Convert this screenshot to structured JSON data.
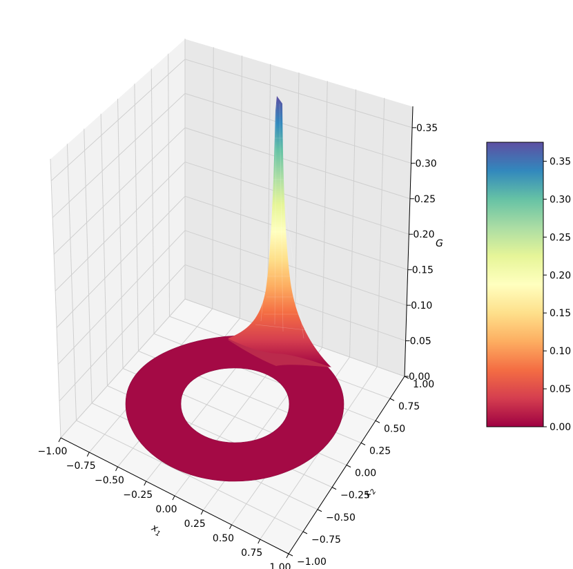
{
  "chart_data": {
    "type": "surface3d",
    "surface": "annulus (inner radius ~0.5, outer radius ~1.0) with a sharp peak near (x1, x2) ≈ (1.0, 0.5)",
    "peak": {
      "x1": 1.0,
      "x2": 0.5,
      "G": 0.38
    },
    "colormap": "Spectral_r",
    "colormap_stops": [
      "#9e0142",
      "#d53e4f",
      "#f46d43",
      "#fdae61",
      "#fee08b",
      "#ffffbf",
      "#e6f598",
      "#abdda4",
      "#66c2a5",
      "#3288bd",
      "#5e4fa2"
    ],
    "x_axis": {
      "label": "x",
      "label_sub": "1",
      "ticks": [
        "−1.00",
        "−0.75",
        "−0.50",
        "−0.25",
        "0.00",
        "0.25",
        "0.50",
        "0.75",
        "1.00"
      ],
      "range": [
        -1.0,
        1.0
      ]
    },
    "y_axis": {
      "label": "x",
      "label_sub": "2",
      "ticks": [
        "−1.00",
        "−0.75",
        "−0.50",
        "−0.25",
        "0.00",
        "0.25",
        "0.50",
        "0.75",
        "1.00"
      ],
      "range": [
        -1.0,
        1.0
      ]
    },
    "z_axis": {
      "label": "G",
      "ticks": [
        "0.00",
        "0.05",
        "0.10",
        "0.15",
        "0.20",
        "0.25",
        "0.30",
        "0.35"
      ],
      "range": [
        0.0,
        0.38
      ]
    },
    "colorbar": {
      "ticks": [
        "0.00",
        "0.05",
        "0.10",
        "0.15",
        "0.20",
        "0.25",
        "0.30",
        "0.35"
      ],
      "range": [
        0.0,
        0.375
      ]
    },
    "grid": true
  }
}
